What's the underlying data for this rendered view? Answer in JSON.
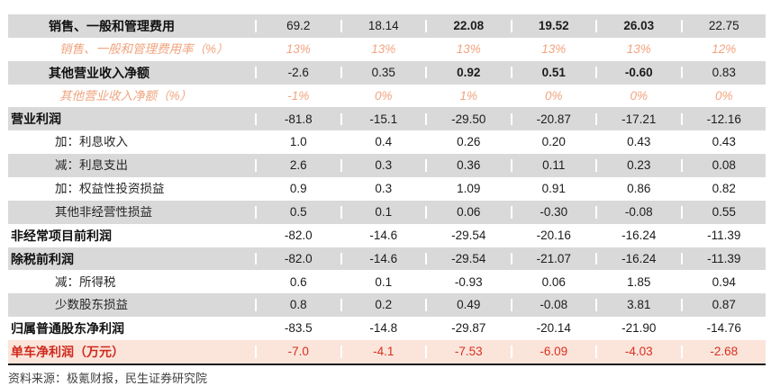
{
  "colors": {
    "stripe_gray": "#d9d9d9",
    "highlight_pink": "#fbe5db",
    "highlight_red": "#d02a1c",
    "pct_orange": "#f1a47f",
    "table_bottom_border": "#161616",
    "number_text": "#1c1c1c",
    "source_text": "#3f3f3f"
  },
  "table": {
    "rows": [
      {
        "label": "销售、一般和管理费用",
        "style": "item-bold",
        "stripe": "gray",
        "bold_cols": [
          2,
          3,
          4
        ],
        "values": [
          "69.2",
          "18.14",
          "22.08",
          "19.52",
          "26.03",
          "22.75"
        ]
      },
      {
        "label": "销售、一般和管理费用率（%）",
        "style": "pct",
        "stripe": "white",
        "bold_cols": [],
        "values": [
          "13%",
          "13%",
          "13%",
          "13%",
          "13%",
          "12%"
        ]
      },
      {
        "label": "其他营业收入净额",
        "style": "item-bold",
        "stripe": "gray",
        "bold_cols": [
          2,
          3,
          4
        ],
        "values": [
          "-2.6",
          "0.35",
          "0.92",
          "0.51",
          "-0.60",
          "0.83"
        ]
      },
      {
        "label": "其他营业收入净额（%）",
        "style": "pct",
        "stripe": "white",
        "bold_cols": [],
        "values": [
          "-1%",
          "0%",
          "1%",
          "0%",
          "0%",
          "0%"
        ]
      },
      {
        "label": "营业利润",
        "style": "total",
        "stripe": "gray",
        "bold_cols": [],
        "values": [
          "-81.8",
          "-15.1",
          "-29.50",
          "-20.87",
          "-17.21",
          "-12.16"
        ]
      },
      {
        "label": "加：利息收入",
        "style": "sub",
        "stripe": "white",
        "bold_cols": [],
        "values": [
          "1.0",
          "0.4",
          "0.26",
          "0.20",
          "0.43",
          "0.43"
        ]
      },
      {
        "label": "减：利息支出",
        "style": "sub",
        "stripe": "gray",
        "bold_cols": [],
        "values": [
          "2.6",
          "0.3",
          "0.36",
          "0.11",
          "0.23",
          "0.08"
        ]
      },
      {
        "label": "加：权益性投资损益",
        "style": "sub",
        "stripe": "white",
        "bold_cols": [],
        "values": [
          "0.9",
          "0.3",
          "1.09",
          "0.91",
          "0.86",
          "0.82"
        ]
      },
      {
        "label": "其他非经营性损益",
        "style": "sub",
        "stripe": "gray",
        "bold_cols": [],
        "values": [
          "0.5",
          "0.1",
          "0.06",
          "-0.30",
          "-0.08",
          "0.55"
        ]
      },
      {
        "label": "非经常项目前利润",
        "style": "total",
        "stripe": "white",
        "bold_cols": [],
        "values": [
          "-82.0",
          "-14.6",
          "-29.54",
          "-20.16",
          "-16.24",
          "-11.39"
        ]
      },
      {
        "label": "除税前利润",
        "style": "total",
        "stripe": "gray",
        "bold_cols": [],
        "values": [
          "-82.0",
          "-14.6",
          "-29.54",
          "-21.07",
          "-16.24",
          "-11.39"
        ]
      },
      {
        "label": "减：所得税",
        "style": "sub",
        "stripe": "white",
        "bold_cols": [],
        "values": [
          "0.6",
          "0.1",
          "-0.93",
          "0.06",
          "1.85",
          "0.94"
        ]
      },
      {
        "label": "少数股东损益",
        "style": "sub",
        "stripe": "gray",
        "bold_cols": [],
        "values": [
          "0.8",
          "0.2",
          "0.49",
          "-0.08",
          "3.81",
          "0.87"
        ]
      },
      {
        "label": "归属普通股东净利润",
        "style": "total",
        "stripe": "white",
        "bold_cols": [],
        "values": [
          "-83.5",
          "-14.8",
          "-29.87",
          "-20.14",
          "-21.90",
          "-14.76"
        ]
      },
      {
        "label": "单车净利润（万元）",
        "style": "highlight",
        "stripe": "highlight",
        "bold_cols": [],
        "values": [
          "-7.0",
          "-4.1",
          "-7.53",
          "-6.09",
          "-4.03",
          "-2.68"
        ]
      }
    ]
  },
  "source_note": "资料来源：极氪财报，民生证券研究院"
}
